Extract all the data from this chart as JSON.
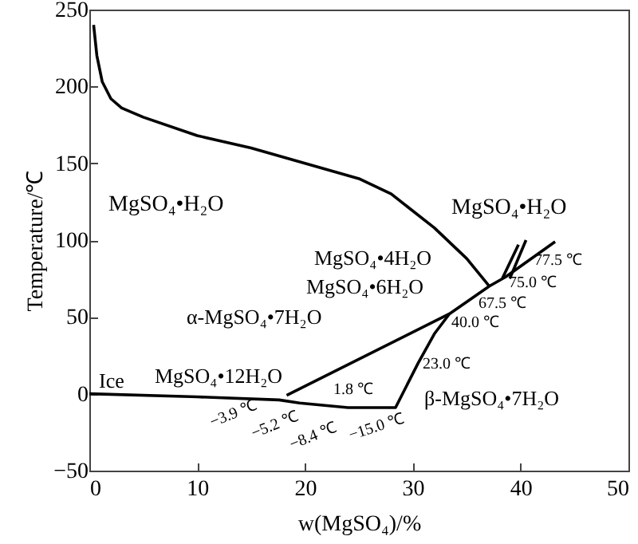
{
  "chart_data": {
    "type": "line",
    "xlabel": "w(MgSO₄)/%",
    "ylabel": "Temperature/℃",
    "xlim": [
      0,
      50
    ],
    "xticks": [
      0,
      10,
      20,
      30,
      40,
      50
    ],
    "ylim": [
      -50,
      250
    ],
    "yticks": [
      -50,
      0,
      50,
      100,
      150,
      200,
      250
    ],
    "grid": false,
    "marker": "none",
    "line_style": "solid",
    "series": [
      {
        "color": "#000000",
        "x": [
          0.4,
          0.7,
          1.2,
          2,
          3,
          5,
          10,
          15,
          20,
          25,
          28,
          32,
          35,
          37.1
        ],
        "values": [
          240,
          220,
          203,
          192,
          186,
          180,
          168,
          160,
          150,
          140,
          130,
          108,
          88,
          70
        ]
      },
      {
        "color": "#000000",
        "x": [
          0,
          10,
          17.6,
          19.5,
          24,
          28.4,
          30.5,
          32,
          33.4
        ],
        "values": [
          0,
          -2,
          -4,
          -6,
          -9,
          -9,
          20,
          39,
          52
        ]
      },
      {
        "color": "#000000",
        "x": [
          18.3,
          33.4,
          37.1,
          38.6,
          43.2
        ],
        "values": [
          -1,
          52,
          70,
          76,
          99
        ]
      },
      {
        "color": "#000000",
        "x": [
          38.3,
          39.8
        ],
        "values": [
          75,
          97
        ]
      },
      {
        "color": "#000000",
        "x": [
          39,
          40.5
        ],
        "values": [
          75,
          100
        ]
      }
    ],
    "annotations": [
      "MgSO₄•H₂O",
      "MgSO₄•H₂O",
      "MgSO₄•4H₂O",
      "MgSO₄•6H₂O",
      "α-MgSO₄•7H₂O",
      "Ice",
      "MgSO₄•12H₂O",
      "β-MgSO₄•7H₂O",
      "1.8 ℃",
      "23.0 ℃",
      "40.0 ℃",
      "67.5 ℃",
      "75.0 ℃",
      "77.5 ℃",
      "−3.9 ℃",
      "−5.2 ℃",
      "−8.4 ℃",
      "−15.0 ℃"
    ]
  }
}
